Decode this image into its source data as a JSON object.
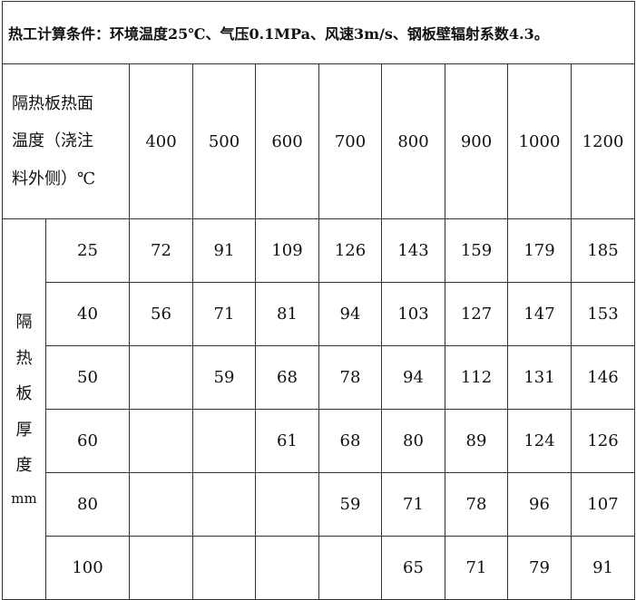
{
  "caption": "热工计算条件：环境温度25℃、气压0.1MPa、风速3m/s、钢板壁辐射系数4.3。",
  "header_label_lines": [
    "隔热板热面",
    "温度（浇注",
    "料外侧）℃"
  ],
  "side_label_chars": [
    "隔",
    "热",
    "板",
    "厚",
    "度"
  ],
  "side_label_unit": "mm",
  "temperatures": [
    "400",
    "500",
    "600",
    "700",
    "800",
    "900",
    "1000",
    "1200"
  ],
  "rows": [
    {
      "thickness": "25",
      "values": [
        "72",
        "91",
        "109",
        "126",
        "143",
        "159",
        "179",
        "185"
      ]
    },
    {
      "thickness": "40",
      "values": [
        "56",
        "71",
        "81",
        "94",
        "103",
        "127",
        "147",
        "153"
      ]
    },
    {
      "thickness": "50",
      "values": [
        "",
        "59",
        "68",
        "78",
        "94",
        "112",
        "131",
        "146"
      ]
    },
    {
      "thickness": "60",
      "values": [
        "",
        "",
        "61",
        "68",
        "80",
        "89",
        "124",
        "126"
      ]
    },
    {
      "thickness": "80",
      "values": [
        "",
        "",
        "",
        "59",
        "71",
        "78",
        "96",
        "107"
      ]
    },
    {
      "thickness": "100",
      "values": [
        "",
        "",
        "",
        "",
        "65",
        "71",
        "79",
        "91"
      ]
    }
  ]
}
